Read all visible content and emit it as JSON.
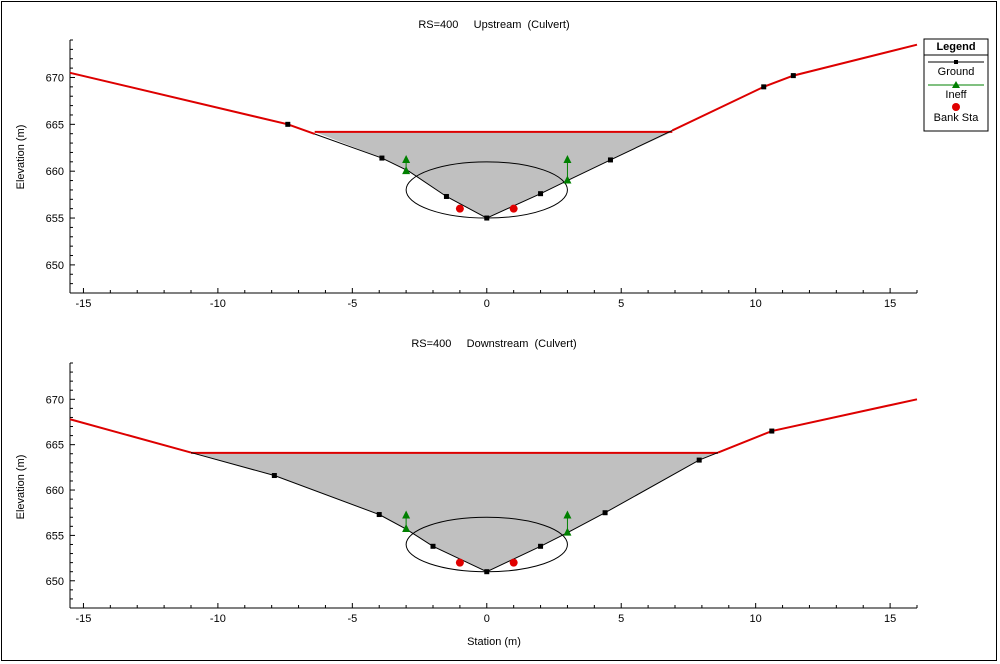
{
  "chart_data": [
    {
      "type": "line",
      "title": "RS=400     Upstream  (Culvert)",
      "xlabel": "",
      "ylabel": "Elevation (m)",
      "xlim": [
        -15.5,
        16
      ],
      "ylim": [
        647,
        674
      ],
      "x_ticks": [
        -15,
        -10,
        -5,
        0,
        5,
        10,
        15
      ],
      "y_ticks": [
        650,
        655,
        660,
        665,
        670
      ],
      "ground": {
        "x": [
          -15.5,
          -7.4,
          -3.9,
          -2.9,
          -1.5,
          0,
          2.0,
          3.0,
          4.6,
          10.3,
          11.4,
          16
        ],
        "y": [
          670.5,
          665.0,
          661.4,
          660.0,
          657.3,
          655.0,
          657.6,
          659.0,
          661.2,
          669.0,
          670.2,
          673.5
        ]
      },
      "ground_markers": [
        [
          -7.4,
          665.0
        ],
        [
          -3.9,
          661.4
        ],
        [
          -1.5,
          657.3
        ],
        [
          0,
          655.0
        ],
        [
          2.0,
          657.6
        ],
        [
          4.6,
          661.2
        ],
        [
          10.3,
          669.0
        ],
        [
          11.4,
          670.2
        ]
      ],
      "water_surface": {
        "elevation": 664.2,
        "x_left": -6.4,
        "x_right": 6.9
      },
      "culvert": {
        "center_x": 0,
        "center_y": 658.0,
        "half_width": 3.0,
        "half_height": 3.0
      },
      "ineff": [
        {
          "x": 3.0,
          "y_low": 659.0,
          "y_high": 661.2
        },
        {
          "x": -3.0,
          "y_low": 660.0,
          "y_high": 661.2
        }
      ],
      "bank_sta": [
        [
          -1.0,
          656.0
        ],
        [
          1.0,
          656.0
        ]
      ]
    },
    {
      "type": "line",
      "title": "RS=400     Downstream  (Culvert)",
      "xlabel": "Station (m)",
      "ylabel": "Elevation (m)",
      "xlim": [
        -15.5,
        16
      ],
      "ylim": [
        647,
        674
      ],
      "x_ticks": [
        -15,
        -10,
        -5,
        0,
        5,
        10,
        15
      ],
      "y_ticks": [
        650,
        655,
        660,
        665,
        670
      ],
      "ground": {
        "x": [
          -15.5,
          -7.9,
          -4.0,
          -3.0,
          -2.0,
          0,
          2.0,
          3.0,
          4.4,
          7.9,
          10.6,
          16
        ],
        "y": [
          667.8,
          661.6,
          657.3,
          655.7,
          653.8,
          651.0,
          653.8,
          655.3,
          657.5,
          663.3,
          666.5,
          670.0
        ]
      },
      "ground_markers": [
        [
          -7.9,
          661.6
        ],
        [
          -4.0,
          657.3
        ],
        [
          -2.0,
          653.8
        ],
        [
          0,
          651.0
        ],
        [
          2.0,
          653.8
        ],
        [
          4.4,
          657.5
        ],
        [
          7.9,
          663.3
        ],
        [
          10.6,
          666.5
        ]
      ],
      "water_surface": {
        "elevation": 664.1,
        "x_left": -11.0,
        "x_right": 8.6
      },
      "culvert": {
        "center_x": 0,
        "center_y": 654.0,
        "half_width": 3.0,
        "half_height": 3.0
      },
      "ineff": [
        {
          "x": -3.0,
          "y_low": 655.7,
          "y_high": 657.2
        },
        {
          "x": 3.0,
          "y_low": 655.3,
          "y_high": 657.2
        }
      ],
      "bank_sta": [
        [
          -1.0,
          652.0
        ],
        [
          1.0,
          652.0
        ]
      ]
    }
  ],
  "legend": {
    "title": "Legend",
    "items": [
      {
        "label": "Ground",
        "kind": "ground",
        "color": "#000000"
      },
      {
        "label": "Ineff",
        "kind": "ineff",
        "color": "#008000"
      },
      {
        "label": "Bank Sta",
        "kind": "bank",
        "color": "#e00000"
      }
    ]
  },
  "colors": {
    "ground_line": "#000000",
    "ground_outer": "#dd0000",
    "water_surface": "#dd0000",
    "water_fill": "#c0c0c0",
    "ineff": "#008000",
    "bank": "#e00000",
    "culvert": "#000000"
  }
}
